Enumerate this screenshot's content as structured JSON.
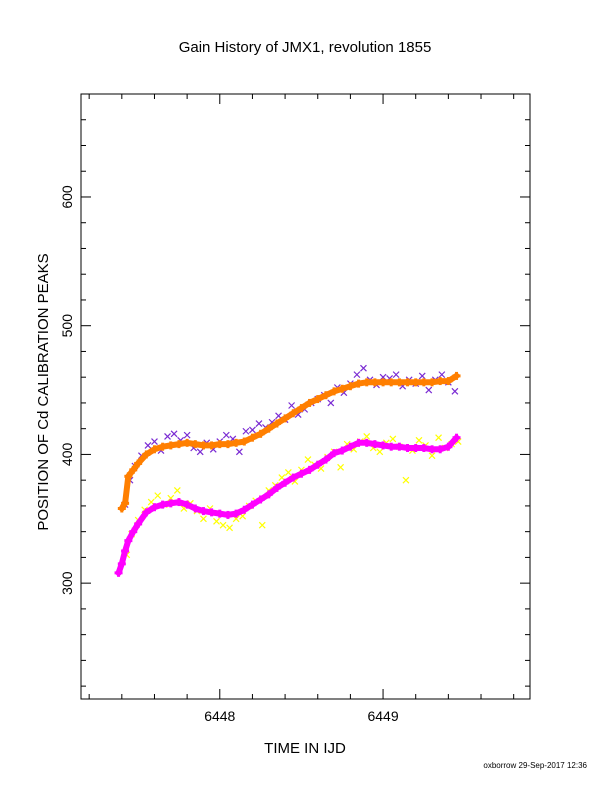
{
  "chart_data": {
    "type": "scatter",
    "title": "Gain History of JMX1, revolution 1855",
    "xlabel": "TIME IN IJD",
    "ylabel": "POSITION OF Cd CALIBRATION PEAKS",
    "xlim": [
      6447.15,
      6449.9
    ],
    "ylim": [
      210,
      680
    ],
    "x_ticks": [
      6448,
      6449
    ],
    "y_ticks": [
      300,
      400,
      500,
      600
    ],
    "grid": false,
    "credit": "oxborrow 29-Sep-2017 12:36",
    "series": [
      {
        "color": "#7a2bd3",
        "marker": "x",
        "points": [
          [
            6447.42,
            361
          ],
          [
            6447.45,
            380
          ],
          [
            6447.48,
            391
          ],
          [
            6447.52,
            399
          ],
          [
            6447.56,
            407
          ],
          [
            6447.6,
            410
          ],
          [
            6447.64,
            403
          ],
          [
            6447.68,
            414
          ],
          [
            6447.72,
            416
          ],
          [
            6447.76,
            411
          ],
          [
            6447.8,
            415
          ],
          [
            6447.84,
            405
          ],
          [
            6447.88,
            402
          ],
          [
            6447.92,
            409
          ],
          [
            6447.96,
            404
          ],
          [
            6448.0,
            410
          ],
          [
            6448.04,
            415
          ],
          [
            6448.08,
            412
          ],
          [
            6448.12,
            402
          ],
          [
            6448.16,
            418
          ],
          [
            6448.2,
            419
          ],
          [
            6448.24,
            424
          ],
          [
            6448.28,
            421
          ],
          [
            6448.32,
            425
          ],
          [
            6448.36,
            430
          ],
          [
            6448.4,
            427
          ],
          [
            6448.44,
            438
          ],
          [
            6448.48,
            431
          ],
          [
            6448.52,
            435
          ],
          [
            6448.56,
            440
          ],
          [
            6448.6,
            443
          ],
          [
            6448.64,
            446
          ],
          [
            6448.68,
            440
          ],
          [
            6448.72,
            452
          ],
          [
            6448.76,
            448
          ],
          [
            6448.8,
            455
          ],
          [
            6448.84,
            462
          ],
          [
            6448.88,
            467
          ],
          [
            6448.92,
            458
          ],
          [
            6448.96,
            454
          ],
          [
            6449.0,
            460
          ],
          [
            6449.04,
            459
          ],
          [
            6449.08,
            462
          ],
          [
            6449.12,
            453
          ],
          [
            6449.16,
            458
          ],
          [
            6449.2,
            455
          ],
          [
            6449.24,
            461
          ],
          [
            6449.28,
            450
          ],
          [
            6449.32,
            458
          ],
          [
            6449.36,
            462
          ],
          [
            6449.4,
            456
          ],
          [
            6449.44,
            449
          ]
        ]
      },
      {
        "color": "#ff7f00",
        "marker": "+",
        "points": [
          [
            6447.4,
            358
          ],
          [
            6447.42,
            362
          ],
          [
            6447.44,
            383
          ],
          [
            6447.47,
            388
          ],
          [
            6447.5,
            393
          ],
          [
            6447.55,
            400
          ],
          [
            6447.6,
            404
          ],
          [
            6447.65,
            406
          ],
          [
            6447.7,
            407
          ],
          [
            6447.75,
            408
          ],
          [
            6447.8,
            409
          ],
          [
            6447.85,
            408
          ],
          [
            6447.9,
            407
          ],
          [
            6447.95,
            407
          ],
          [
            6448.0,
            408
          ],
          [
            6448.05,
            408
          ],
          [
            6448.1,
            409
          ],
          [
            6448.15,
            410
          ],
          [
            6448.2,
            413
          ],
          [
            6448.25,
            416
          ],
          [
            6448.3,
            420
          ],
          [
            6448.35,
            424
          ],
          [
            6448.4,
            428
          ],
          [
            6448.45,
            432
          ],
          [
            6448.5,
            436
          ],
          [
            6448.55,
            440
          ],
          [
            6448.6,
            443
          ],
          [
            6448.65,
            446
          ],
          [
            6448.7,
            449
          ],
          [
            6448.75,
            451
          ],
          [
            6448.8,
            453
          ],
          [
            6448.85,
            455
          ],
          [
            6448.9,
            456
          ],
          [
            6448.95,
            456
          ],
          [
            6449.0,
            456
          ],
          [
            6449.05,
            456
          ],
          [
            6449.1,
            456
          ],
          [
            6449.15,
            456
          ],
          [
            6449.2,
            456
          ],
          [
            6449.25,
            456
          ],
          [
            6449.3,
            456
          ],
          [
            6449.35,
            457
          ],
          [
            6449.4,
            457
          ],
          [
            6449.45,
            461
          ]
        ]
      },
      {
        "color": "#ffff00",
        "marker": "x",
        "points": [
          [
            6447.43,
            322
          ],
          [
            6447.46,
            338
          ],
          [
            6447.5,
            349
          ],
          [
            6447.54,
            357
          ],
          [
            6447.58,
            363
          ],
          [
            6447.62,
            368
          ],
          [
            6447.66,
            361
          ],
          [
            6447.7,
            366
          ],
          [
            6447.74,
            372
          ],
          [
            6447.78,
            358
          ],
          [
            6447.82,
            362
          ],
          [
            6447.86,
            356
          ],
          [
            6447.9,
            350
          ],
          [
            6447.94,
            358
          ],
          [
            6447.98,
            348
          ],
          [
            6448.02,
            345
          ],
          [
            6448.06,
            343
          ],
          [
            6448.1,
            350
          ],
          [
            6448.14,
            352
          ],
          [
            6448.18,
            360
          ],
          [
            6448.22,
            364
          ],
          [
            6448.26,
            345
          ],
          [
            6448.3,
            372
          ],
          [
            6448.34,
            376
          ],
          [
            6448.38,
            382
          ],
          [
            6448.42,
            386
          ],
          [
            6448.46,
            379
          ],
          [
            6448.5,
            388
          ],
          [
            6448.54,
            396
          ],
          [
            6448.58,
            392
          ],
          [
            6448.62,
            389
          ],
          [
            6448.66,
            398
          ],
          [
            6448.7,
            402
          ],
          [
            6448.74,
            390
          ],
          [
            6448.78,
            408
          ],
          [
            6448.82,
            404
          ],
          [
            6448.86,
            410
          ],
          [
            6448.9,
            414
          ],
          [
            6448.94,
            405
          ],
          [
            6448.98,
            402
          ],
          [
            6449.02,
            409
          ],
          [
            6449.06,
            412
          ],
          [
            6449.1,
            406
          ],
          [
            6449.14,
            380
          ],
          [
            6449.18,
            403
          ],
          [
            6449.22,
            411
          ],
          [
            6449.26,
            407
          ],
          [
            6449.3,
            399
          ],
          [
            6449.34,
            413
          ],
          [
            6449.38,
            405
          ],
          [
            6449.42,
            408
          ],
          [
            6449.46,
            410
          ]
        ]
      },
      {
        "color": "#ff00ff",
        "marker": "+",
        "points": [
          [
            6447.38,
            308
          ],
          [
            6447.4,
            315
          ],
          [
            6447.42,
            325
          ],
          [
            6447.44,
            333
          ],
          [
            6447.47,
            340
          ],
          [
            6447.5,
            346
          ],
          [
            6447.55,
            355
          ],
          [
            6447.6,
            359
          ],
          [
            6447.65,
            361
          ],
          [
            6447.7,
            362
          ],
          [
            6447.75,
            363
          ],
          [
            6447.8,
            361
          ],
          [
            6447.85,
            358
          ],
          [
            6447.9,
            356
          ],
          [
            6447.95,
            355
          ],
          [
            6448.0,
            354
          ],
          [
            6448.05,
            353
          ],
          [
            6448.1,
            354
          ],
          [
            6448.15,
            357
          ],
          [
            6448.2,
            361
          ],
          [
            6448.25,
            365
          ],
          [
            6448.3,
            369
          ],
          [
            6448.35,
            374
          ],
          [
            6448.4,
            378
          ],
          [
            6448.45,
            382
          ],
          [
            6448.5,
            385
          ],
          [
            6448.55,
            388
          ],
          [
            6448.6,
            392
          ],
          [
            6448.65,
            396
          ],
          [
            6448.7,
            401
          ],
          [
            6448.75,
            403
          ],
          [
            6448.8,
            406
          ],
          [
            6448.85,
            409
          ],
          [
            6448.9,
            409
          ],
          [
            6448.95,
            408
          ],
          [
            6449.0,
            407
          ],
          [
            6449.05,
            406
          ],
          [
            6449.1,
            406
          ],
          [
            6449.15,
            405
          ],
          [
            6449.2,
            405
          ],
          [
            6449.25,
            405
          ],
          [
            6449.3,
            404
          ],
          [
            6449.35,
            404
          ],
          [
            6449.4,
            406
          ],
          [
            6449.45,
            413
          ]
        ]
      }
    ]
  }
}
